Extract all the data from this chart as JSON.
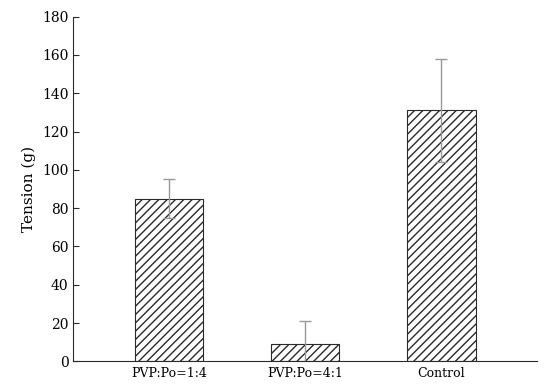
{
  "categories": [
    "PVP:Po=1:4",
    "PVP:Po=4:1",
    "Control"
  ],
  "values": [
    85,
    9,
    131
  ],
  "errors": [
    10,
    12,
    27
  ],
  "ylabel": "Tension (g)",
  "ylim": [
    0,
    180
  ],
  "yticks": [
    0,
    20,
    40,
    60,
    80,
    100,
    120,
    140,
    160,
    180
  ],
  "bar_color": "#ffffff",
  "bar_edgecolor": "#2a2a2a",
  "hatch": "////",
  "error_color": "#999999",
  "background_color": "#ffffff",
  "bar_width": 0.5,
  "figsize": [
    5.48,
    3.91
  ],
  "dpi": 100,
  "ylabel_fontsize": 11,
  "tick_fontsize": 10,
  "xtick_fontsize": 9
}
